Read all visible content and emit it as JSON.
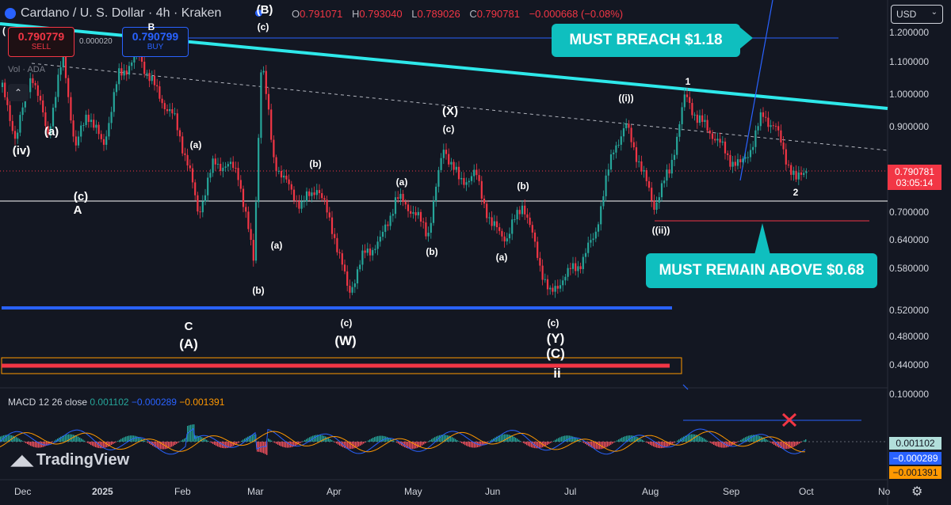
{
  "header": {
    "symbol": "Cardano / U. S. Dollar · 4h · Kraken",
    "badge": "(B)",
    "open_key": "O",
    "open": "0.791071",
    "high_key": "H",
    "high": "0.793040",
    "low_key": "L",
    "low": "0.789026",
    "close_key": "C",
    "close": "0.790781",
    "change": "−0.000668 (−0.08%)"
  },
  "trade": {
    "sell_price": "0.790779",
    "sell_label": "SELL",
    "buy_price": "0.790799",
    "buy_label": "BUY",
    "spread": "0.000020"
  },
  "volume_label": "Vol · ADA",
  "currency": "USD",
  "price_axis": [
    "1.200000",
    "1.100000",
    "1.000000",
    "0.900000",
    "0.700000",
    "0.640000",
    "0.580000",
    "0.520000",
    "0.480000",
    "0.440000"
  ],
  "last_price": {
    "value": "0.790781",
    "countdown": "03:05:14"
  },
  "time_axis": [
    {
      "label": "Dec",
      "bold": false
    },
    {
      "label": "2025",
      "bold": true
    },
    {
      "label": "Feb",
      "bold": false
    },
    {
      "label": "Mar",
      "bold": false
    },
    {
      "label": "Apr",
      "bold": false
    },
    {
      "label": "May",
      "bold": false
    },
    {
      "label": "Jun",
      "bold": false
    },
    {
      "label": "Jul",
      "bold": false
    },
    {
      "label": "Aug",
      "bold": false
    },
    {
      "label": "Sep",
      "bold": false
    },
    {
      "label": "Oct",
      "bold": false
    },
    {
      "label": "No",
      "bold": false
    }
  ],
  "macd": {
    "label": "MACD 12 26 close",
    "v1": "0.001102",
    "v2": "−0.000289",
    "v3": "−0.001391",
    "axis_top": "0.100000",
    "colors": {
      "hist_up": "#26a69a",
      "macd": "#2962ff",
      "signal": "#ff9800"
    }
  },
  "annotations": {
    "breach": "MUST BREACH $1.18",
    "remain": "MUST REMAIN ABOVE $0.68"
  },
  "waves": {
    "c1": "(c)",
    "b_top": "B",
    "a1": "(a)",
    "iv": "(iv)",
    "c_a": "(c)",
    "A": "A",
    "p_l": "(",
    "c_mar": "(c)",
    "a_feb": "(a)",
    "b_mar": "(b)",
    "a_mar": "(a)",
    "b_apr": "(b)",
    "C": "C",
    "A_big": "(A)",
    "c_apr": "(c)",
    "W": "(W)",
    "a_apr": "(a)",
    "c_may": "(c)",
    "X": "(X)",
    "b_may": "(b)",
    "b_jun": "(b)",
    "a_jun": "(a)",
    "c_jun": "(c)",
    "Y": "(Y)",
    "C_big": "(C)",
    "ii": "ii",
    "i": "((i))",
    "ii2": "((ii))",
    "one": "1",
    "two": "2"
  },
  "brand": "TradingView",
  "colors": {
    "bg": "#131722",
    "up": "#26a69a",
    "down": "#f23645",
    "cyan": "#2ee8ea",
    "callout": "#0fbfbf",
    "blue": "#2962ff"
  }
}
